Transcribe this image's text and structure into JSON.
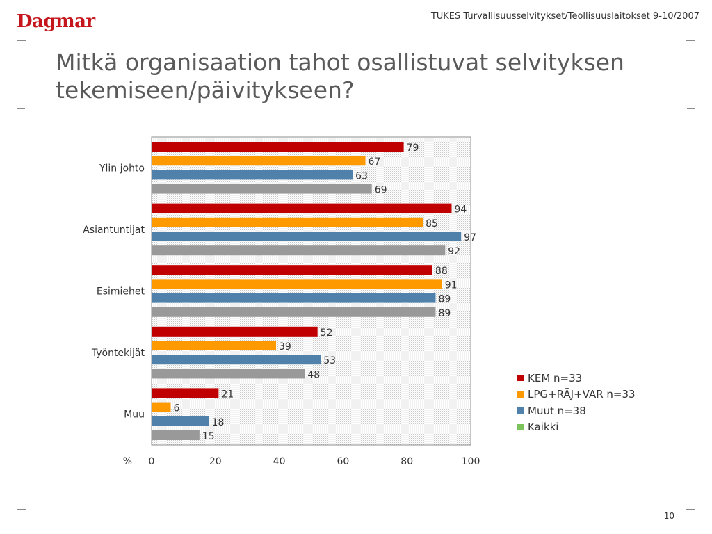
{
  "header": {
    "logo_text": "Dagmar",
    "source_text": "TUKES Turvallisuusselvitykset/Teollisuuslaitokset 9-10/2007"
  },
  "slide": {
    "title": "Mitkä organisaation tahot osallistuvat selvityksen tekemiseen/päivitykseen?",
    "page_number": "10"
  },
  "chart_data": {
    "type": "bar",
    "orientation": "horizontal",
    "categories": [
      "Ylin johto",
      "Asiantuntijat",
      "Esimiehet",
      "Työntekijät",
      "Muu"
    ],
    "series": [
      {
        "name": "KEM n=33",
        "color": "#c00000",
        "values": [
          79,
          94,
          88,
          52,
          21
        ]
      },
      {
        "name": "LPG+RÄJ+VAR n=33",
        "color": "#ff9900",
        "values": [
          67,
          85,
          91,
          39,
          6
        ]
      },
      {
        "name": "Muut n=38",
        "color": "#4f81ab",
        "values": [
          63,
          97,
          89,
          53,
          18
        ]
      },
      {
        "name": "Kaikki",
        "color": "#999999",
        "values": [
          69,
          92,
          89,
          48,
          15
        ]
      }
    ],
    "legend_colors": [
      "#c00000",
      "#ff9900",
      "#4f81ab",
      "#7dc35b"
    ],
    "xlim": [
      0,
      100
    ],
    "x_ticks": [
      "0",
      "20",
      "40",
      "60",
      "80",
      "100"
    ],
    "x_axis_unit": "%",
    "legend_position": "bottom-right",
    "grid": false
  }
}
